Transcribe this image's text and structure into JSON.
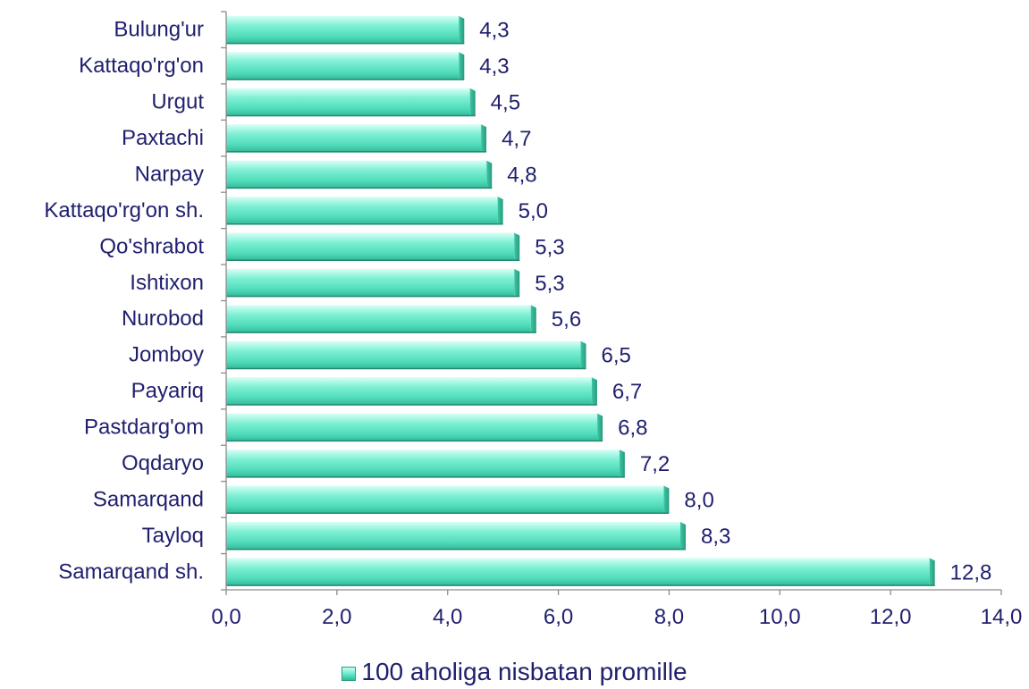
{
  "chart_data": {
    "type": "bar",
    "orientation": "horizontal",
    "categories": [
      "Bulung'ur",
      "Kattaqo'rg'on ",
      "Urgut",
      "Paxtachi",
      "Narpay",
      "Kattaqo'rg'on sh.",
      "Qo'shrabot",
      "Ishtixon",
      "Nurobod",
      "Jomboy",
      "Payariq",
      "Pastdarg'om",
      "Oqdaryo",
      "Samarqand ",
      "Tayloq",
      "Samarqand sh."
    ],
    "series": [
      {
        "name": "100 aholiga nisbatan promille",
        "values": [
          4.3,
          4.3,
          4.5,
          4.7,
          4.8,
          5.0,
          5.3,
          5.3,
          5.6,
          6.5,
          6.7,
          6.8,
          7.2,
          8.0,
          8.3,
          12.8
        ],
        "value_labels": [
          "4,3",
          "4,3",
          "4,5",
          "4,7",
          "4,8",
          "5,0",
          "5,3",
          "5,3",
          "5,6",
          "6,5",
          "6,7",
          "6,8",
          "7,2",
          "8,0",
          "8,3",
          "12,8"
        ]
      }
    ],
    "xlim": [
      0,
      14
    ],
    "x_ticks": [
      0,
      2,
      4,
      6,
      8,
      10,
      12,
      14
    ],
    "x_tick_labels": [
      "0,0",
      "2,0",
      "4,0",
      "6,0",
      "8,0",
      "10,0",
      "12,0",
      "14,0"
    ],
    "grid": false,
    "legend_position": "bottom",
    "colors": {
      "bar": "#5fe8c8",
      "bar_light": "#c9fff2",
      "bar_dark": "#2fae8f",
      "text": "#1f1f6e",
      "axis": "#8c8c8c"
    }
  },
  "legend": {
    "label": "100 aholiga nisbatan promille"
  }
}
